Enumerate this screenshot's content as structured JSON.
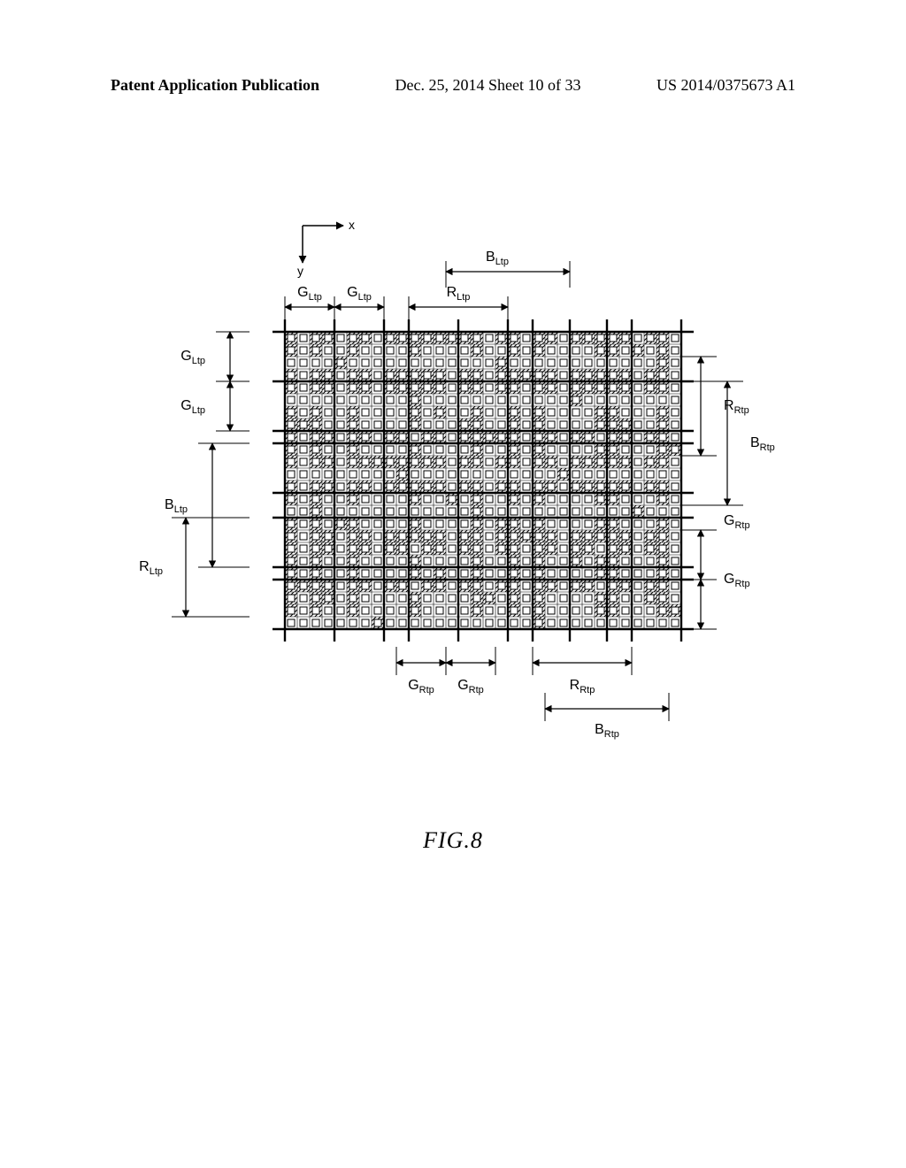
{
  "header": {
    "left": "Patent Application Publication",
    "mid": "Dec. 25, 2014  Sheet 10 of 33",
    "right": "US 2014/0375673 A1"
  },
  "figure": {
    "caption": "FIG.8",
    "axis": {
      "x": "x",
      "y": "y"
    },
    "labels": {
      "G_Ltp": "G",
      "R_Ltp": "R",
      "B_Ltp": "B",
      "G_Rtp": "G",
      "R_Rtp": "R",
      "B_Rtp": "B",
      "sub_Ltp": "Ltp",
      "sub_Rtp": "Rtp"
    },
    "grid": {
      "background": "#ffffff",
      "line": "#000000",
      "hatch": "#000000",
      "square": "#ffffff"
    }
  }
}
